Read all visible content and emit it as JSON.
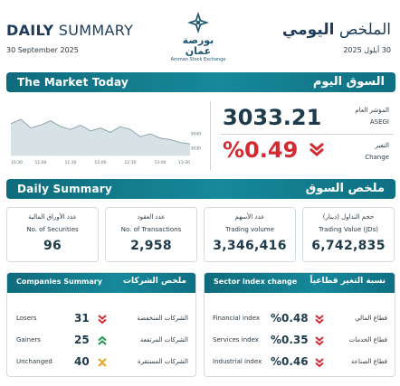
{
  "header": {
    "title_en_bold": "DAILY",
    "title_en_rest": " SUMMARY",
    "date_en": "30 September 2025",
    "title_ar_rest": "الملخص",
    "title_ar_bold": "اليومي",
    "date_ar": "30 أيلول 2025",
    "logo_ar": "بورصة عمان",
    "logo_en": "Amman Stock Exchange"
  },
  "market_today": {
    "title_en": "The Market Today",
    "title_ar": "السوق اليوم",
    "index_label_ar": "المؤشر العام",
    "index_label_en": "ASEGI",
    "index_value": "3033.21",
    "change_label_ar": "التغير",
    "change_label_en": "Change",
    "change_value": "%0.49",
    "change_direction": "down",
    "down_color": "#d42a31",
    "chart_data": {
      "type": "area",
      "x_ticks": [
        "10:30",
        "11:00",
        "11:30",
        "12:00",
        "12:30",
        "13:00",
        "13:30"
      ],
      "y_ticks": [
        "3040",
        "3030"
      ],
      "ylim": [
        3025,
        3055
      ],
      "x": [
        "10:30",
        "10:40",
        "10:50",
        "11:00",
        "11:10",
        "11:20",
        "11:30",
        "11:40",
        "11:50",
        "12:00",
        "12:10",
        "12:20",
        "12:30",
        "12:40",
        "12:50",
        "13:00",
        "13:10",
        "13:20",
        "13:30"
      ],
      "values": [
        3047,
        3050,
        3044,
        3046,
        3049,
        3045,
        3043,
        3046,
        3042,
        3044,
        3041,
        3045,
        3043,
        3038,
        3040,
        3037,
        3036,
        3034,
        3033
      ]
    }
  },
  "daily_summary": {
    "title_en": "Daily Summary",
    "title_ar": "ملخص السوق",
    "cards": [
      {
        "ar": "عدد الأوراق المالية",
        "en": "No. of Securities",
        "value": "96"
      },
      {
        "ar": "عدد العقود",
        "en": "No. of Transactions",
        "value": "2,958"
      },
      {
        "ar": "عدد الأسهم",
        "en": "Trading volume",
        "value": "3,346,416"
      },
      {
        "ar": "حجم التداول (دينار)",
        "en": "Trading Value (JDs)",
        "value": "6,742,835"
      }
    ]
  },
  "companies": {
    "title_en": "Companies Summary",
    "title_ar": "ملخص الشركات",
    "rows": [
      {
        "en": "Losers",
        "value": "31",
        "ar": "الشركات المنخفضة",
        "icon": "double-chevron-down-icon",
        "color": "#d42a31"
      },
      {
        "en": "Gainers",
        "value": "25",
        "ar": "الشركات المرتفعة",
        "icon": "double-chevron-up-icon",
        "color": "#1e9a4f"
      },
      {
        "en": "Unchanged",
        "value": "40",
        "ar": "الشركات المستقرة",
        "icon": "unchanged-icon",
        "color": "#e8a21c"
      }
    ]
  },
  "sectors": {
    "title_en": "Sector index change",
    "title_ar": "نسبة التغير قطاعياً",
    "rows": [
      {
        "en": "Financial index",
        "value": "%0.48",
        "ar": "قطاع المالي",
        "icon": "double-chevron-down-icon"
      },
      {
        "en": "Services index",
        "value": "%0.35",
        "ar": "قطاع الخدمات",
        "icon": "double-chevron-down-icon"
      },
      {
        "en": "Industrial index",
        "value": "%0.46",
        "ar": "قطاع الصناعة",
        "icon": "double-chevron-down-icon"
      }
    ]
  }
}
